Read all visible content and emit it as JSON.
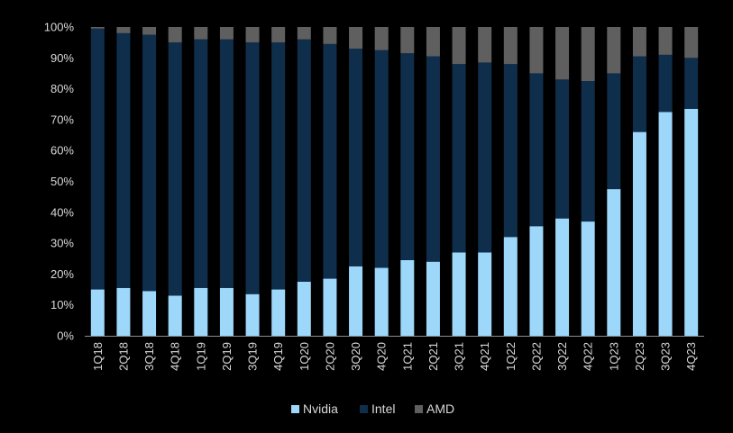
{
  "chart_data": {
    "type": "bar",
    "stacked": true,
    "title": "",
    "xlabel": "",
    "ylabel": "",
    "ylim": [
      0,
      100
    ],
    "y_ticks": [
      "0%",
      "10%",
      "20%",
      "30%",
      "40%",
      "50%",
      "60%",
      "70%",
      "80%",
      "90%",
      "100%"
    ],
    "grid": false,
    "legend_position": "bottom",
    "categories": [
      "1Q18",
      "2Q18",
      "3Q18",
      "4Q18",
      "1Q19",
      "2Q19",
      "3Q19",
      "4Q19",
      "1Q20",
      "2Q20",
      "3Q20",
      "4Q20",
      "1Q21",
      "2Q21",
      "3Q21",
      "4Q21",
      "1Q22",
      "2Q22",
      "3Q22",
      "4Q22",
      "1Q23",
      "2Q23",
      "3Q23",
      "4Q23"
    ],
    "series": [
      {
        "name": "Nvidia",
        "color": "#9dd7f9",
        "values": [
          15,
          15.5,
          14.5,
          13,
          15.5,
          15.5,
          13.5,
          15,
          17.5,
          18.5,
          22.5,
          22,
          24.5,
          24,
          27,
          27,
          32,
          35.5,
          38,
          37,
          47.5,
          66,
          72.5,
          73.5
        ]
      },
      {
        "name": "Intel",
        "color": "#0f2e4c",
        "values": [
          84.5,
          82.5,
          83,
          82,
          80.5,
          80.5,
          81.5,
          80,
          78.5,
          76,
          70.5,
          70.5,
          67,
          66.5,
          61,
          61.5,
          56,
          49.5,
          45,
          45.5,
          37.5,
          24.5,
          18.5,
          16.5
        ]
      },
      {
        "name": "AMD",
        "color": "#5f5f5f",
        "values": [
          0.5,
          2,
          2.5,
          5,
          4,
          4,
          5,
          5,
          4,
          5.5,
          7,
          7.5,
          8.5,
          9.5,
          12,
          11.5,
          12,
          15,
          17,
          17.5,
          15,
          9.5,
          9,
          10
        ]
      }
    ]
  },
  "colors": {
    "background": "#000000",
    "axis": "#8c8c8c",
    "text": "#d9d9d9"
  }
}
